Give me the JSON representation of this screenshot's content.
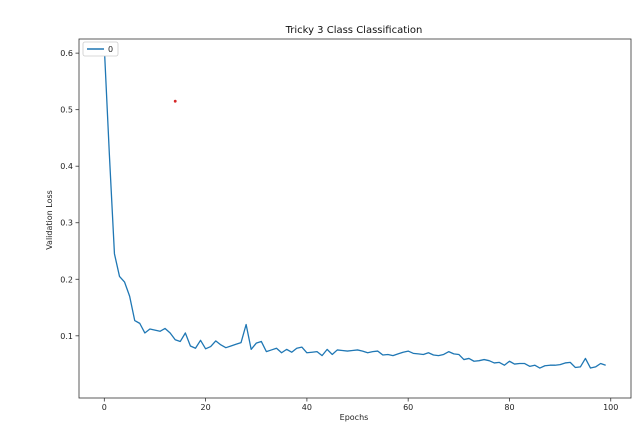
{
  "chart_data": {
    "type": "line",
    "title": "Tricky 3 Class Classification",
    "xlabel": "Epochs",
    "ylabel": "Validation Loss",
    "xlim": [
      -5,
      104
    ],
    "ylim": [
      -0.01,
      0.625
    ],
    "x_ticks": [
      0,
      20,
      40,
      60,
      80,
      100
    ],
    "x_tick_labels": [
      "0",
      "20",
      "40",
      "60",
      "80",
      "100"
    ],
    "y_ticks": [
      0.1,
      0.2,
      0.3,
      0.4,
      0.5,
      0.6
    ],
    "y_tick_labels": [
      "0.1",
      "0.2",
      "0.3",
      "0.4",
      "0.5",
      "0.6"
    ],
    "grid": false,
    "legend": {
      "placement": "top-left",
      "entries": [
        "0"
      ]
    },
    "series": [
      {
        "name": "0",
        "color": "#1f77b4",
        "x": [
          0,
          1,
          2,
          3,
          4,
          5,
          6,
          7,
          8,
          9,
          10,
          11,
          12,
          13,
          14,
          15,
          16,
          17,
          18,
          19,
          20,
          21,
          22,
          23,
          24,
          25,
          26,
          27,
          28,
          29,
          30,
          31,
          32,
          33,
          34,
          35,
          36,
          37,
          38,
          39,
          40,
          41,
          42,
          43,
          44,
          45,
          46,
          47,
          48,
          49,
          50,
          51,
          52,
          53,
          54,
          55,
          56,
          57,
          58,
          59,
          60,
          61,
          62,
          63,
          64,
          65,
          66,
          67,
          68,
          69,
          70,
          71,
          72,
          73,
          74,
          75,
          76,
          77,
          78,
          79,
          80,
          81,
          82,
          83,
          84,
          85,
          86,
          87,
          88,
          89,
          90,
          91,
          92,
          93,
          94,
          95,
          96,
          97,
          98,
          99
        ],
        "values": [
          0.61,
          0.42,
          0.245,
          0.205,
          0.195,
          0.17,
          0.127,
          0.122,
          0.105,
          0.112,
          0.11,
          0.108,
          0.113,
          0.105,
          0.093,
          0.09,
          0.105,
          0.082,
          0.078,
          0.092,
          0.077,
          0.081,
          0.091,
          0.084,
          0.079,
          0.082,
          0.085,
          0.088,
          0.12,
          0.076,
          0.087,
          0.09,
          0.072,
          0.075,
          0.078,
          0.07,
          0.076,
          0.071,
          0.078,
          0.08,
          0.07,
          0.071,
          0.072,
          0.065,
          0.076,
          0.067,
          0.075,
          0.074,
          0.073,
          0.074,
          0.075,
          0.073,
          0.07,
          0.072,
          0.073,
          0.066,
          0.067,
          0.065,
          0.068,
          0.071,
          0.073,
          0.069,
          0.068,
          0.067,
          0.07,
          0.066,
          0.065,
          0.067,
          0.072,
          0.068,
          0.067,
          0.058,
          0.06,
          0.055,
          0.056,
          0.058,
          0.056,
          0.052,
          0.053,
          0.048,
          0.055,
          0.05,
          0.051,
          0.051,
          0.046,
          0.048,
          0.043,
          0.047,
          0.048,
          0.048,
          0.049,
          0.052,
          0.053,
          0.044,
          0.045,
          0.06,
          0.043,
          0.045,
          0.051,
          0.048
        ]
      },
      {
        "name": "",
        "type": "scatter",
        "color": "#d62728",
        "x": [
          14
        ],
        "values": [
          0.515
        ]
      }
    ]
  }
}
